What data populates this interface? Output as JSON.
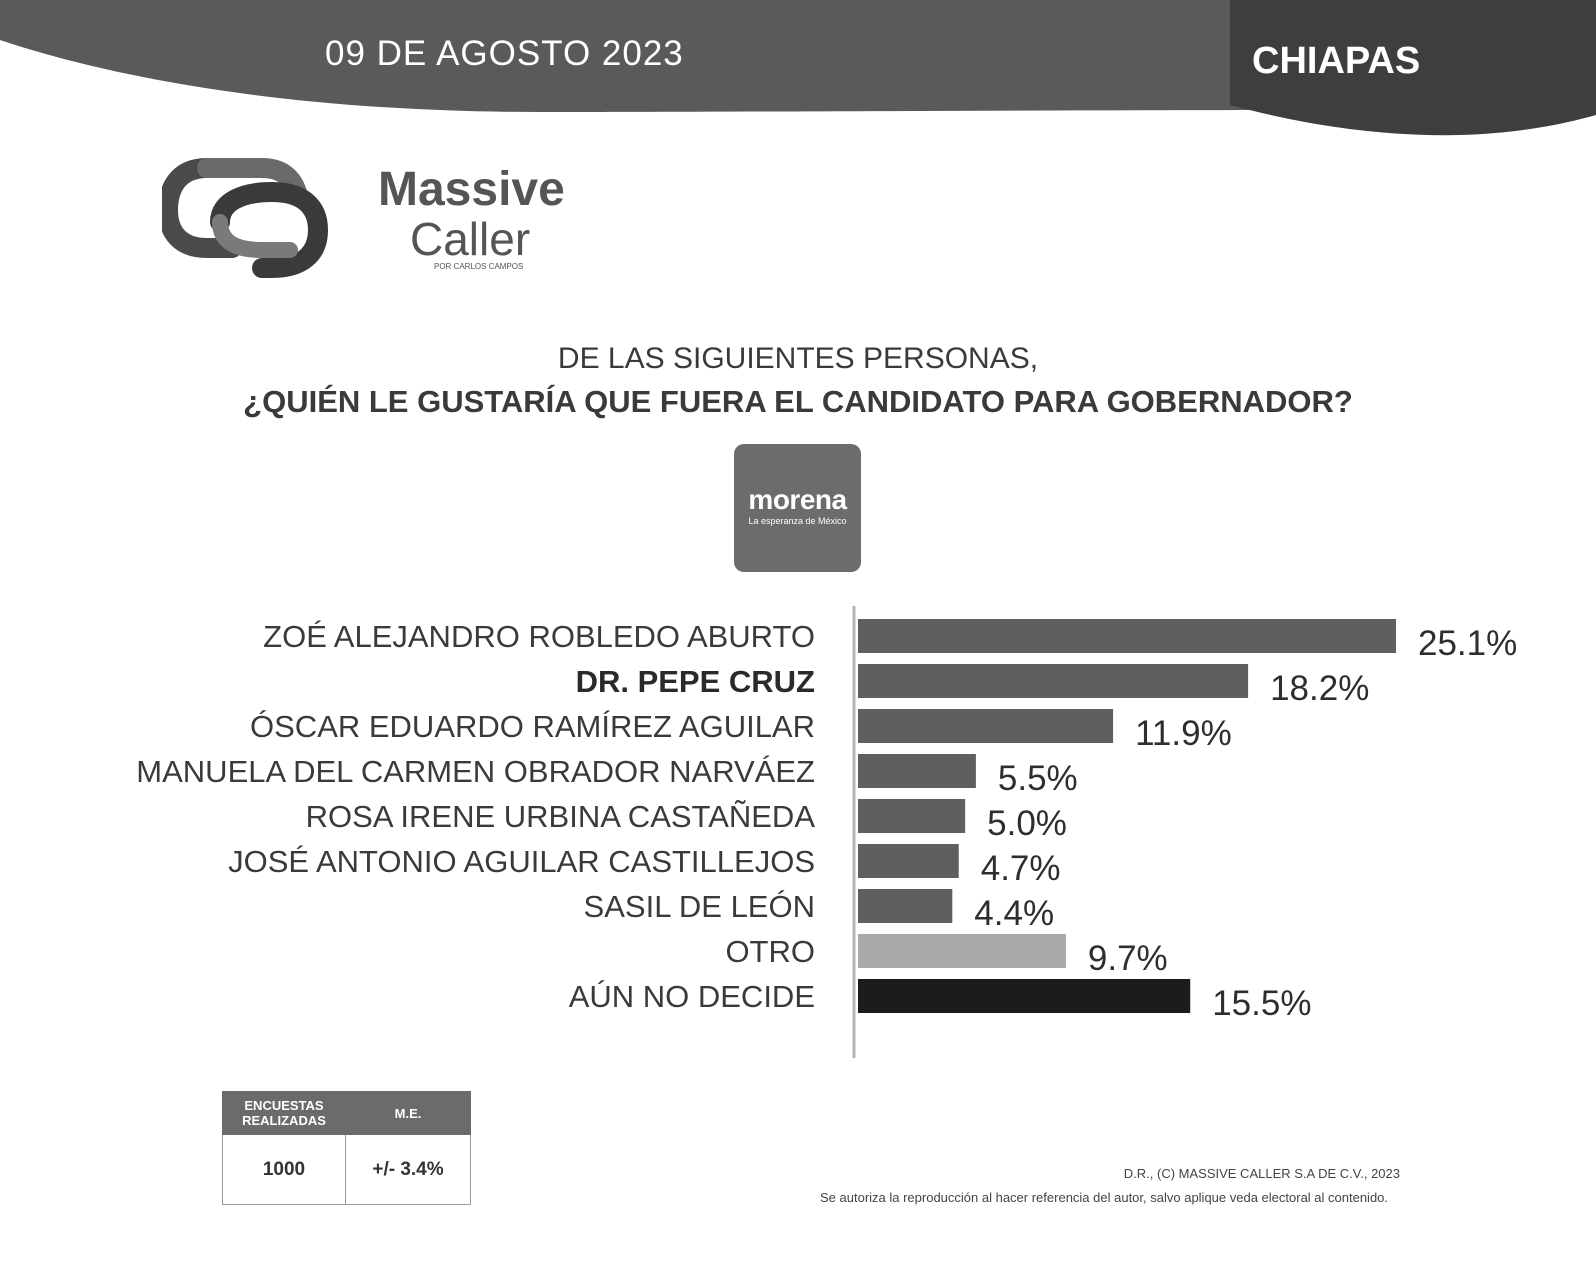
{
  "header": {
    "date": "09 DE AGOSTO 2023",
    "region": "CHIAPAS"
  },
  "brand": {
    "logo_icon": "massive-caller-logo-icon",
    "name_line1": "Massive",
    "name_line2": "Caller",
    "subtitle": "POR CARLOS CAMPOS"
  },
  "question": {
    "line1": "DE LAS SIGUIENTES PERSONAS,",
    "line2": "¿QUIÉN LE GUSTARÍA QUE FUERA EL CANDIDATO PARA GOBERNADOR?"
  },
  "party_logo": {
    "name": "morena",
    "tagline": "La esperanza de México"
  },
  "chart_data": {
    "type": "bar",
    "orientation": "horizontal",
    "title": "",
    "xlabel": "",
    "ylabel": "",
    "categories": [
      "ZOÉ ALEJANDRO ROBLEDO ABURTO",
      "DR. PEPE CRUZ",
      "ÓSCAR EDUARDO RAMÍREZ AGUILAR",
      "MANUELA DEL CARMEN OBRADOR NARVÁEZ",
      "ROSA IRENE URBINA CASTAÑEDA",
      "JOSÉ ANTONIO AGUILAR CASTILLEJOS",
      "SASIL DE LEÓN",
      "OTRO",
      "AÚN NO DECIDE"
    ],
    "values": [
      25.1,
      18.2,
      11.9,
      5.5,
      5.0,
      4.7,
      4.4,
      9.7,
      15.5
    ],
    "value_labels": [
      "25.1%",
      "18.2%",
      "11.9%",
      "5.5%",
      "5.0%",
      "4.7%",
      "4.4%",
      "9.7%",
      "15.5%"
    ],
    "bold_categories": [
      "DR. PEPE CRUZ"
    ],
    "bar_colors": [
      "#5f5f5f",
      "#5f5f5f",
      "#5f5f5f",
      "#5f5f5f",
      "#5f5f5f",
      "#5f5f5f",
      "#5f5f5f",
      "#a9a9a9",
      "#1c1c1c"
    ],
    "xlim": [
      0,
      25.1
    ],
    "grid": false,
    "legend": "none"
  },
  "stats": {
    "header_surveys": "ENCUESTAS REALIZADAS",
    "header_moe": "M.E.",
    "surveys": "1000",
    "moe": "+/- 3.4%"
  },
  "footer": {
    "copyright": "D.R., (C) MASSIVE CALLER S.A DE C.V., 2023",
    "notice": "Se autoriza la reproducción al hacer referencia del autor, salvo aplique veda electoral al contenido."
  }
}
